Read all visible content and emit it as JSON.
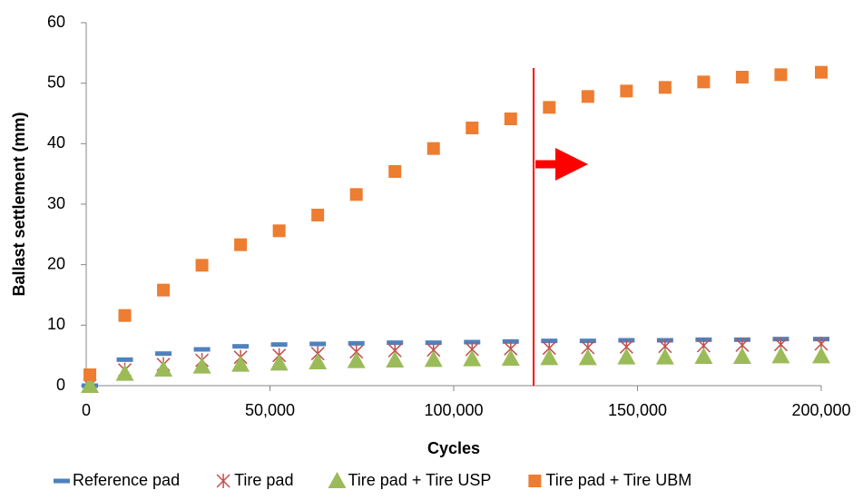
{
  "chart_data": {
    "type": "scatter",
    "xlabel": "Cycles",
    "ylabel": "Ballast settlement (mm)",
    "x": [
      1000,
      10500,
      21000,
      31500,
      42000,
      52500,
      63000,
      73500,
      84000,
      94500,
      105000,
      115500,
      126000,
      136500,
      147000,
      157500,
      168000,
      178500,
      189000,
      200000
    ],
    "series": [
      {
        "name": "Reference pad",
        "color": "#4f81bd",
        "marker": "dash",
        "values": [
          0,
          4.3,
          5.3,
          6.0,
          6.5,
          6.8,
          6.9,
          7.0,
          7.1,
          7.1,
          7.2,
          7.3,
          7.4,
          7.4,
          7.5,
          7.5,
          7.6,
          7.6,
          7.7,
          7.7
        ]
      },
      {
        "name": "Tire pad",
        "color": "#c0504d",
        "marker": "x",
        "values": [
          0,
          2.6,
          3.5,
          4.2,
          4.7,
          5.0,
          5.3,
          5.6,
          5.8,
          5.9,
          6.0,
          6.1,
          6.2,
          6.3,
          6.4,
          6.5,
          6.6,
          6.7,
          6.8,
          6.9
        ]
      },
      {
        "name": "Tire pad + Tire USP",
        "color": "#9bbb59",
        "marker": "triangle",
        "values": [
          0,
          2.0,
          2.7,
          3.2,
          3.5,
          3.7,
          3.9,
          4.1,
          4.2,
          4.3,
          4.4,
          4.5,
          4.6,
          4.6,
          4.7,
          4.7,
          4.8,
          4.8,
          4.9,
          4.9
        ]
      },
      {
        "name": "Tire pad + Tire UBM",
        "color": "#ed7d31",
        "marker": "square",
        "values": [
          1.8,
          11.6,
          15.8,
          19.9,
          23.3,
          25.6,
          28.2,
          31.6,
          35.4,
          39.2,
          42.6,
          44.1,
          46.0,
          47.8,
          48.7,
          49.3,
          50.2,
          51.0,
          51.4,
          51.8
        ]
      }
    ],
    "xlim": [
      0,
      200000
    ],
    "xticks": [
      0,
      {
        "value": 50000,
        "label": "50,000"
      },
      {
        "value": 100000,
        "label": "100,000"
      },
      {
        "value": 150000,
        "label": "150,000"
      },
      {
        "value": 200000,
        "label": "200,000"
      }
    ],
    "ylim": [
      0,
      60
    ],
    "yticks": [
      0,
      10,
      20,
      30,
      40,
      50,
      60
    ],
    "grid": false,
    "legend": "bottom"
  }
}
